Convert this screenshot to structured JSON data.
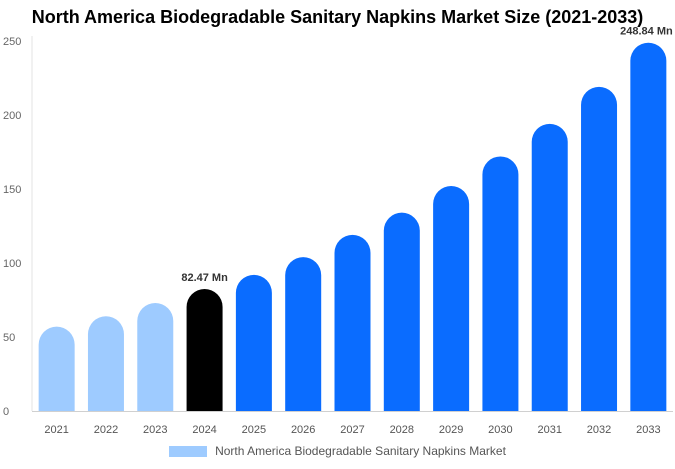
{
  "chart_data": {
    "type": "bar",
    "title": "North America Biodegradable Sanitary Napkins Market Size (2021-2033)",
    "categories": [
      "2021",
      "2022",
      "2023",
      "2024",
      "2025",
      "2026",
      "2027",
      "2028",
      "2029",
      "2030",
      "2031",
      "2032",
      "2033"
    ],
    "series": [
      {
        "name": "North America Biodegradable Sanitary Napkins Market",
        "values": [
          57,
          64,
          73,
          82.47,
          92,
          104,
          119,
          134,
          152,
          172,
          194,
          219,
          248.84
        ]
      }
    ],
    "bar_colors": [
      "#9ecbff",
      "#9ecbff",
      "#9ecbff",
      "#000000",
      "#0a6cff",
      "#0a6cff",
      "#0a6cff",
      "#0a6cff",
      "#0a6cff",
      "#0a6cff",
      "#0a6cff",
      "#0a6cff",
      "#0a6cff"
    ],
    "legend_color": "#9ecbff",
    "data_labels": [
      {
        "index": 3,
        "text": "82.47 Mn"
      },
      {
        "index": 12,
        "text": "248.84 Mn"
      }
    ],
    "y_ticks": [
      0,
      50,
      100,
      150,
      200,
      250
    ],
    "ylim": [
      0,
      250
    ],
    "xlabel": "",
    "ylabel": "",
    "grid": false,
    "legend_position": "bottom"
  }
}
